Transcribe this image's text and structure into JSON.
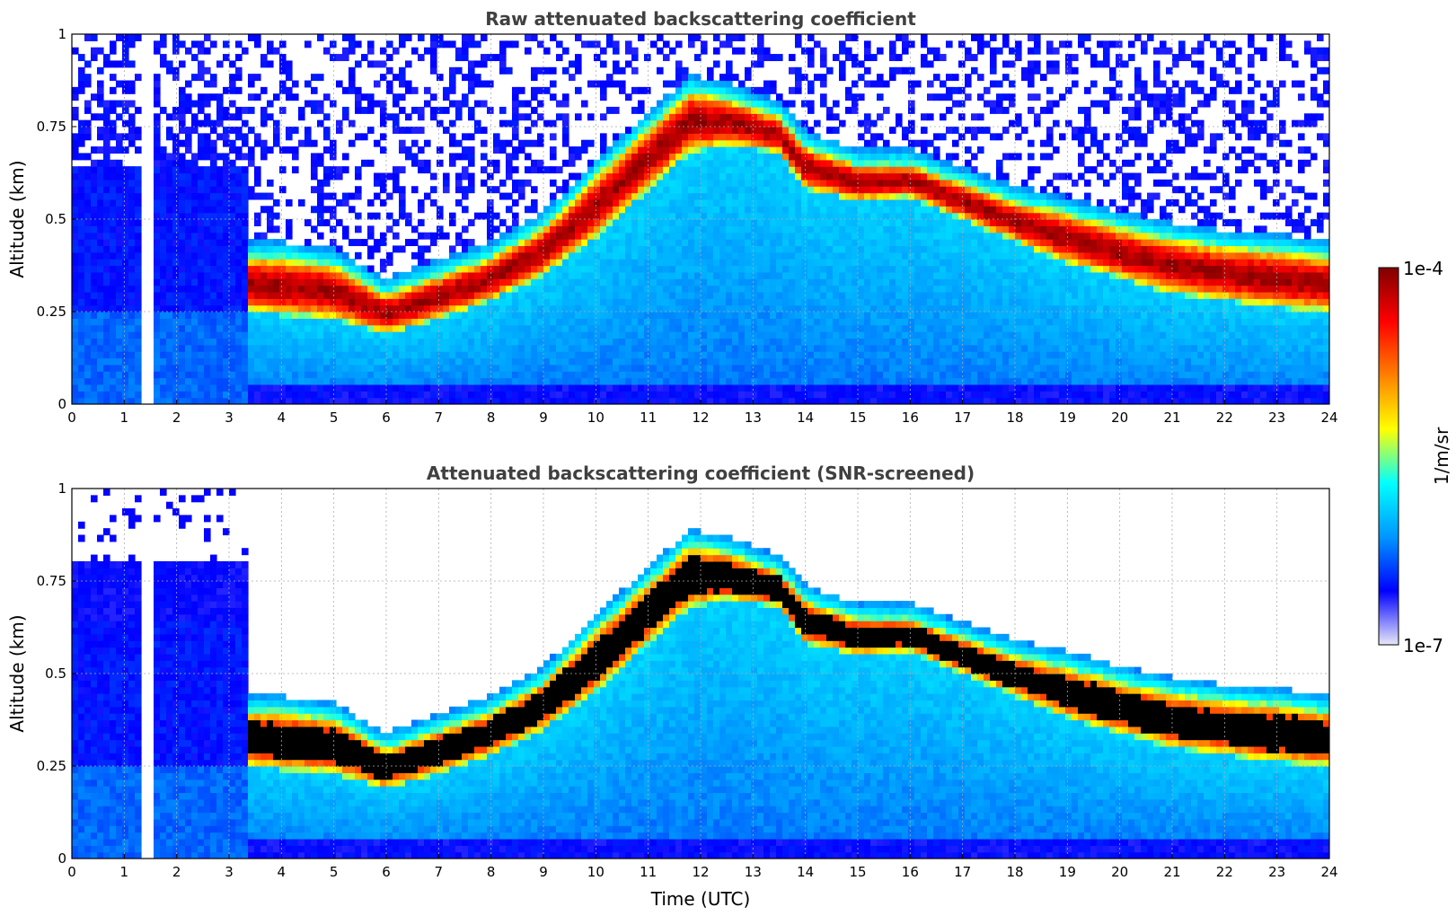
{
  "chart_data": [
    {
      "type": "heatmap",
      "title": "Raw attenuated backscattering coefficient",
      "xlabel": "",
      "ylabel": "Altitude (km)",
      "xlim": [
        0,
        24
      ],
      "ylim": [
        0,
        1
      ],
      "xticks": [
        "0",
        "1",
        "2",
        "3",
        "4",
        "5",
        "6",
        "7",
        "8",
        "9",
        "10",
        "11",
        "12",
        "13",
        "14",
        "15",
        "16",
        "17",
        "18",
        "19",
        "20",
        "21",
        "22",
        "23",
        "24"
      ],
      "yticks": [
        "0",
        "0.25",
        "0.5",
        "0.75",
        "1"
      ],
      "grid": true,
      "screened": false,
      "missing_data_times_utc": [
        1.4,
        1.5
      ],
      "layer_top_profile": {
        "t": [
          3.4,
          4.0,
          5.0,
          6.0,
          7.0,
          8.0,
          9.0,
          10.0,
          11.0,
          11.8,
          12.5,
          13.5,
          14.0,
          15.0,
          16.0,
          17.0,
          18.0,
          19.0,
          20.0,
          21.0,
          22.0,
          23.0,
          24.0
        ],
        "alt_km": [
          0.4,
          0.4,
          0.38,
          0.3,
          0.35,
          0.4,
          0.48,
          0.62,
          0.75,
          0.85,
          0.83,
          0.78,
          0.7,
          0.65,
          0.65,
          0.6,
          0.55,
          0.52,
          0.48,
          0.45,
          0.43,
          0.42,
          0.4
        ]
      },
      "layer_bottom_profile": {
        "t": [
          3.4,
          4.0,
          5.0,
          6.0,
          7.0,
          8.0,
          9.0,
          10.0,
          11.0,
          11.8,
          12.5,
          13.5,
          14.0,
          15.0,
          16.0,
          17.0,
          18.0,
          19.0,
          20.0,
          21.0,
          22.0,
          23.0,
          24.0
        ],
        "alt_km": [
          0.25,
          0.24,
          0.23,
          0.19,
          0.23,
          0.28,
          0.35,
          0.45,
          0.58,
          0.68,
          0.7,
          0.68,
          0.58,
          0.55,
          0.56,
          0.5,
          0.44,
          0.38,
          0.34,
          0.3,
          0.28,
          0.26,
          0.25
        ]
      }
    },
    {
      "type": "heatmap",
      "title": "Attenuated backscattering coefficient (SNR-screened)",
      "xlabel": "Time (UTC)",
      "ylabel": "Altitude (km)",
      "xlim": [
        0,
        24
      ],
      "ylim": [
        0,
        1
      ],
      "xticks": [
        "0",
        "1",
        "2",
        "3",
        "4",
        "5",
        "6",
        "7",
        "8",
        "9",
        "10",
        "11",
        "12",
        "13",
        "14",
        "15",
        "16",
        "17",
        "18",
        "19",
        "20",
        "21",
        "22",
        "23",
        "24"
      ],
      "yticks": [
        "0",
        "0.25",
        "0.5",
        "0.75",
        "1"
      ],
      "grid": true,
      "screened": true,
      "missing_data_times_utc": [
        1.4,
        1.5
      ],
      "layer_top_profile": {
        "t": [
          3.4,
          4.0,
          5.0,
          6.0,
          7.0,
          8.0,
          9.0,
          10.0,
          11.0,
          11.8,
          12.5,
          13.5,
          14.0,
          15.0,
          16.0,
          17.0,
          18.0,
          19.0,
          20.0,
          21.0,
          22.0,
          23.0,
          24.0
        ],
        "alt_km": [
          0.4,
          0.4,
          0.38,
          0.3,
          0.35,
          0.4,
          0.48,
          0.62,
          0.75,
          0.85,
          0.83,
          0.78,
          0.7,
          0.65,
          0.65,
          0.6,
          0.55,
          0.52,
          0.48,
          0.45,
          0.43,
          0.42,
          0.4
        ]
      },
      "layer_bottom_profile": {
        "t": [
          3.4,
          4.0,
          5.0,
          6.0,
          7.0,
          8.0,
          9.0,
          10.0,
          11.0,
          11.8,
          12.5,
          13.5,
          14.0,
          15.0,
          16.0,
          17.0,
          18.0,
          19.0,
          20.0,
          21.0,
          22.0,
          23.0,
          24.0
        ],
        "alt_km": [
          0.25,
          0.24,
          0.23,
          0.19,
          0.23,
          0.28,
          0.35,
          0.45,
          0.58,
          0.68,
          0.7,
          0.68,
          0.58,
          0.55,
          0.56,
          0.5,
          0.44,
          0.38,
          0.34,
          0.3,
          0.28,
          0.26,
          0.25
        ]
      }
    }
  ],
  "colorbar": {
    "label": "1/m/sr",
    "max_label": "1e-4",
    "min_label": "1e-7",
    "scale": "log",
    "range": [
      1e-07,
      0.0001
    ],
    "colormap": [
      "#e8e8f8",
      "#0000ff",
      "#0096ff",
      "#00ffff",
      "#ffff00",
      "#ff8000",
      "#ff0000",
      "#800000"
    ]
  }
}
